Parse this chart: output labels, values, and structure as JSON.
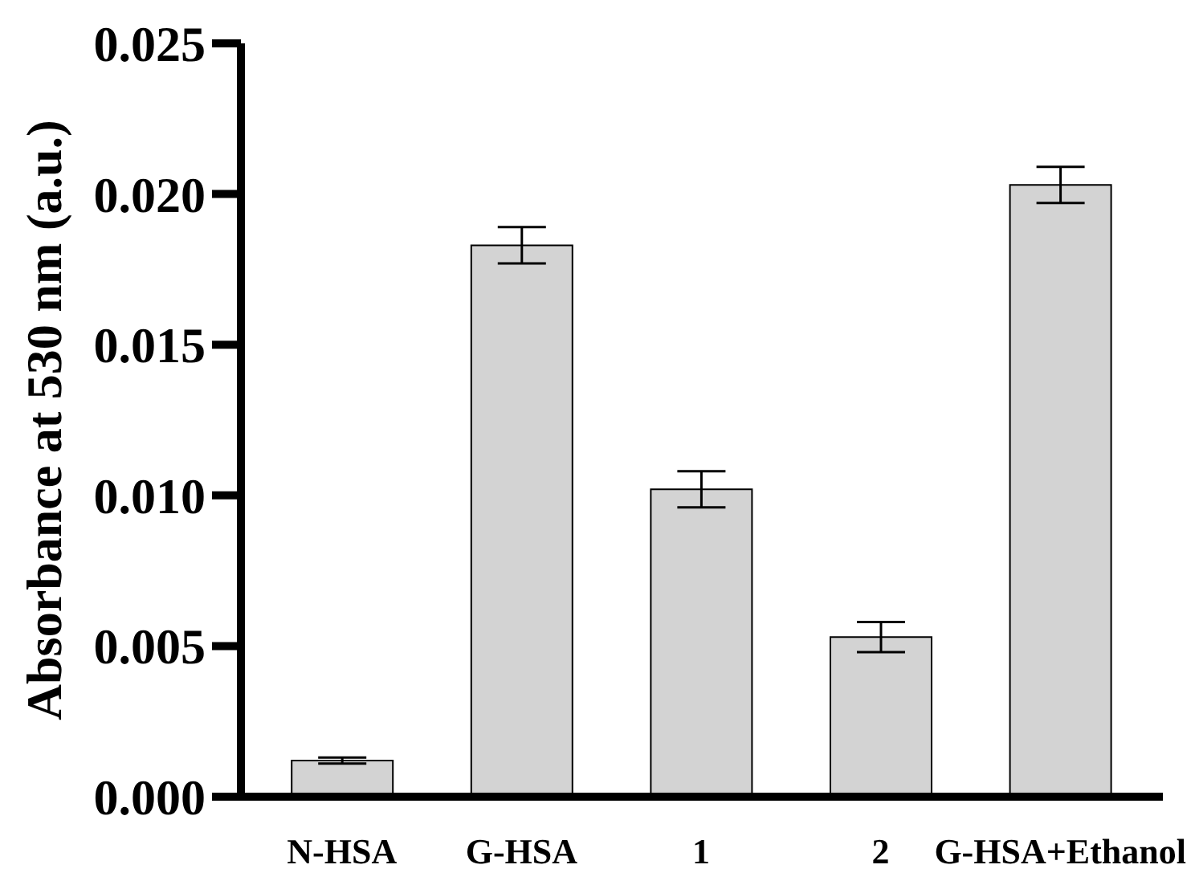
{
  "chart_data": {
    "type": "bar",
    "categories": [
      "N-HSA",
      "G-HSA",
      "1",
      "2",
      "G-HSA+Ethanol"
    ],
    "values": [
      0.0012,
      0.0183,
      0.0102,
      0.0053,
      0.0203
    ],
    "errors": [
      0.0001,
      0.0006,
      0.0006,
      0.0005,
      0.0006
    ],
    "color": "#d3d3d3",
    "ylabel": "Absorbance at 530 nm (a.u.)",
    "ylim": [
      0,
      0.025
    ],
    "yticks": [
      {
        "value": 0,
        "label": "0.000"
      },
      0.005,
      {
        "value": 0.01,
        "label": "0.010"
      },
      0.015,
      {
        "value": 0.02,
        "label": "0.020"
      },
      0.025
    ]
  }
}
